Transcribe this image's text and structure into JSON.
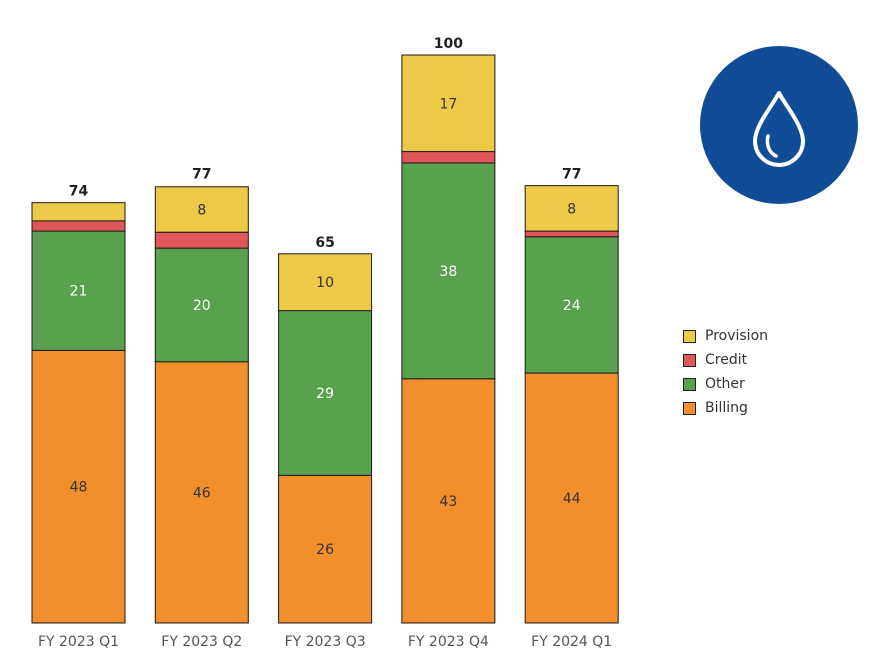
{
  "chart_data": {
    "type": "bar",
    "stacked": true,
    "categories": [
      "FY 2023 Q1",
      "FY 2023 Q2",
      "FY 2023 Q3",
      "FY 2023 Q4",
      "FY 2024 Q1"
    ],
    "totals": [
      74,
      77,
      65,
      100,
      77
    ],
    "series": [
      {
        "name": "Billing",
        "color": "#f28e2b",
        "values": [
          48,
          46,
          26,
          43,
          44
        ],
        "labels": [
          "48",
          "46",
          "26",
          "43",
          "44"
        ]
      },
      {
        "name": "Other",
        "color": "#59a14f",
        "values": [
          21,
          20,
          29,
          38,
          24
        ],
        "labels": [
          "21",
          "20",
          "29",
          "38",
          "24"
        ]
      },
      {
        "name": "Credit",
        "color": "#e15759",
        "values": [
          1.8,
          2.8,
          0,
          2,
          1
        ],
        "labels": [
          "",
          "",
          "",
          "",
          ""
        ]
      },
      {
        "name": "Provision",
        "color": "#edc948",
        "values": [
          3.2,
          8,
          10,
          17,
          8
        ],
        "labels": [
          "",
          "8",
          "10",
          "17",
          "8"
        ]
      }
    ],
    "legend_order": [
      "Provision",
      "Credit",
      "Other",
      "Billing"
    ],
    "legend_position": "right",
    "ylim": [
      0,
      100
    ],
    "grid": false,
    "xlabel": "",
    "ylabel": ""
  },
  "badge": {
    "icon": "water-drop-icon",
    "color": "#114c97"
  }
}
